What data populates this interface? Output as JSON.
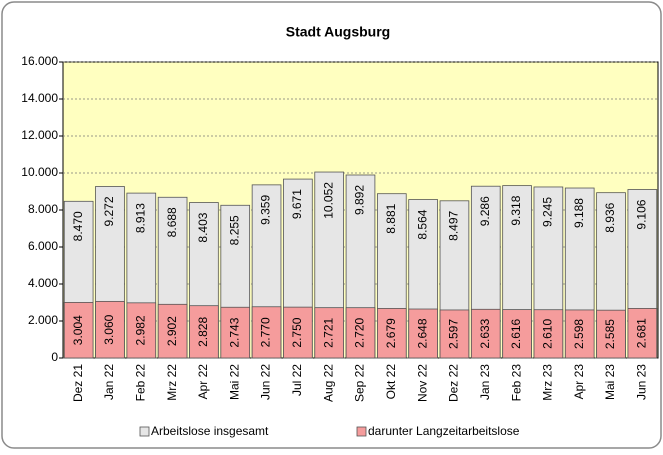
{
  "chart_data": {
    "type": "overlapping-bar",
    "title": "Stadt Augsburg",
    "categories": [
      "Dez 21",
      "Jan 22",
      "Feb 22",
      "Mrz 22",
      "Apr 22",
      "Mai 22",
      "Jun 22",
      "Jul 22",
      "Aug 22",
      "Sep 22",
      "Okt 22",
      "Nov 22",
      "Dez 22",
      "Jan 23",
      "Feb 23",
      "Mrz 23",
      "Apr 23",
      "Mai 23",
      "Jun 23"
    ],
    "series": [
      {
        "name": "Arbeitslose insgesamt",
        "color": "#e6e6e6",
        "values": [
          8470,
          9272,
          8913,
          8688,
          8403,
          8255,
          9359,
          9671,
          10052,
          9892,
          8881,
          8564,
          8497,
          9286,
          9318,
          9245,
          9188,
          8936,
          9106
        ],
        "value_labels": [
          "8.470",
          "9.272",
          "8.913",
          "8.688",
          "8.403",
          "8.255",
          "9.359",
          "9.671",
          "10.052",
          "9.892",
          "8.881",
          "8.564",
          "8.497",
          "9.286",
          "9.318",
          "9.245",
          "9.188",
          "8.936",
          "9.106"
        ]
      },
      {
        "name": "darunter Langzeitarbeitslose",
        "color": "#f59c9c",
        "values": [
          3004,
          3060,
          2982,
          2902,
          2828,
          2743,
          2770,
          2750,
          2721,
          2720,
          2679,
          2648,
          2597,
          2633,
          2616,
          2610,
          2598,
          2585,
          2681
        ],
        "value_labels": [
          "3.004",
          "3.060",
          "2.982",
          "2.902",
          "2.828",
          "2.743",
          "2.770",
          "2.750",
          "2.721",
          "2.720",
          "2.679",
          "2.648",
          "2.597",
          "2.633",
          "2.616",
          "2.610",
          "2.598",
          "2.585",
          "2.681"
        ]
      }
    ],
    "ylim": [
      0,
      16000
    ],
    "yticks": [
      0,
      {
        "value": 2000,
        "label": "2.000"
      },
      {
        "value": 4000,
        "label": "4.000"
      },
      {
        "value": 6000,
        "label": "6.000"
      },
      {
        "value": 8000,
        "label": "8.000"
      },
      {
        "value": 10000,
        "label": "10.000"
      },
      {
        "value": 12000,
        "label": "12.000"
      },
      {
        "value": 14000,
        "label": "14.000"
      },
      {
        "value": 16000,
        "label": "16.000"
      }
    ],
    "grid": true,
    "plot_background": "#ffffc0",
    "legend": "bottom"
  }
}
